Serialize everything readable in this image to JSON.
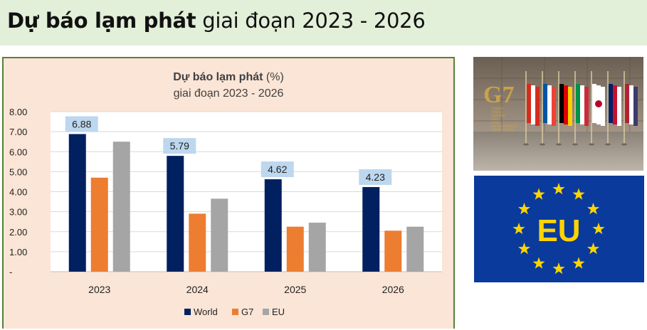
{
  "banner": {
    "title_bold": "Dự báo lạm phát",
    "title_rest": "giai đoạn 2023 - 2026"
  },
  "images": {
    "g7_logo_text": "G7",
    "g7_countries": [
      "CANADA",
      "FRANCE",
      "GERMANY",
      "ITALY",
      "JAPAN",
      "UNITED KINGDOM",
      "UNITED STATES"
    ],
    "eu_logo_text": "EU"
  },
  "colors": {
    "banner_bg": "#e2efd9",
    "chart_bg": "#fbe5d6",
    "chart_border": "#548235",
    "label_bg": "#bdd7ee",
    "eu_blue": "#0a3a9c",
    "eu_star": "#ffd400"
  },
  "chart_data": {
    "type": "bar",
    "title_bold": "Dự báo lạm phát",
    "title_rest": "(%)",
    "subtitle": "giai đoạn 2023 - 2026",
    "categories": [
      "2023",
      "2024",
      "2025",
      "2026"
    ],
    "series": [
      {
        "name": "World",
        "color": "#002060",
        "values": [
          6.88,
          5.79,
          4.62,
          4.23
        ]
      },
      {
        "name": "G7",
        "color": "#ed7d31",
        "values": [
          4.7,
          2.9,
          2.25,
          2.05
        ]
      },
      {
        "name": "EU",
        "color": "#a5a5a5",
        "values": [
          6.5,
          3.65,
          2.45,
          2.25
        ]
      }
    ],
    "data_labels": [
      "6.88",
      "5.79",
      "4.62",
      "4.23"
    ],
    "y_ticks": [
      "-",
      "1.00",
      "2.00",
      "3.00",
      "4.00",
      "5.00",
      "6.00",
      "7.00",
      "8.00"
    ],
    "ylim": [
      0,
      8
    ],
    "grid": true,
    "legend_position": "bottom"
  }
}
